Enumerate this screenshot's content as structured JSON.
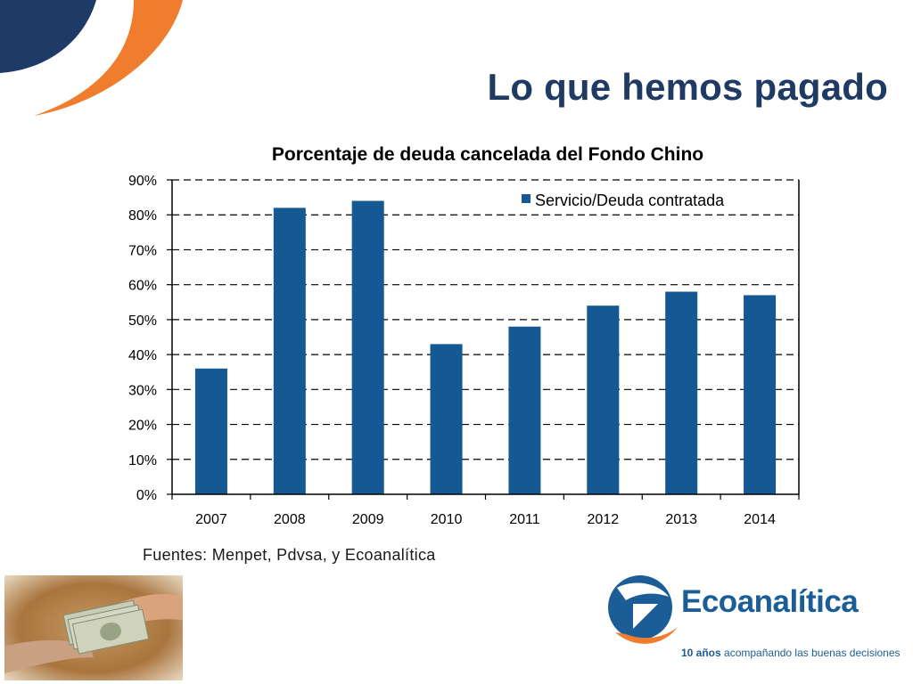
{
  "slide": {
    "title": "Lo que hemos pagado",
    "source_note": "Fuentes: Menpet, Pdvsa, y Ecoanalítica"
  },
  "brand": {
    "name": "Ecoanalítica",
    "tagline_highlight": "10 años",
    "tagline_rest": " acompañando las buenas decisiones"
  },
  "colors": {
    "title": "#1f3a63",
    "bar": "#145894",
    "accent_orange": "#ef7d2d",
    "accent_blue": "#1e3a66"
  },
  "chart_data": {
    "type": "bar",
    "title": "Porcentaje de deuda cancelada del Fondo Chino",
    "categories": [
      "2007",
      "2008",
      "2009",
      "2010",
      "2011",
      "2012",
      "2013",
      "2014"
    ],
    "series": [
      {
        "name": "Servicio/Deuda contratada",
        "values": [
          36,
          82,
          84,
          43,
          48,
          54,
          58,
          57
        ]
      }
    ],
    "ylim": [
      0,
      90
    ],
    "ytick_values": [
      0,
      10,
      20,
      30,
      40,
      50,
      60,
      70,
      80,
      90
    ],
    "ytick_labels": [
      "0%",
      "10%",
      "20%",
      "30%",
      "40%",
      "50%",
      "60%",
      "70%",
      "80%",
      "90%"
    ],
    "grid": true,
    "legend_position": "top-right"
  }
}
